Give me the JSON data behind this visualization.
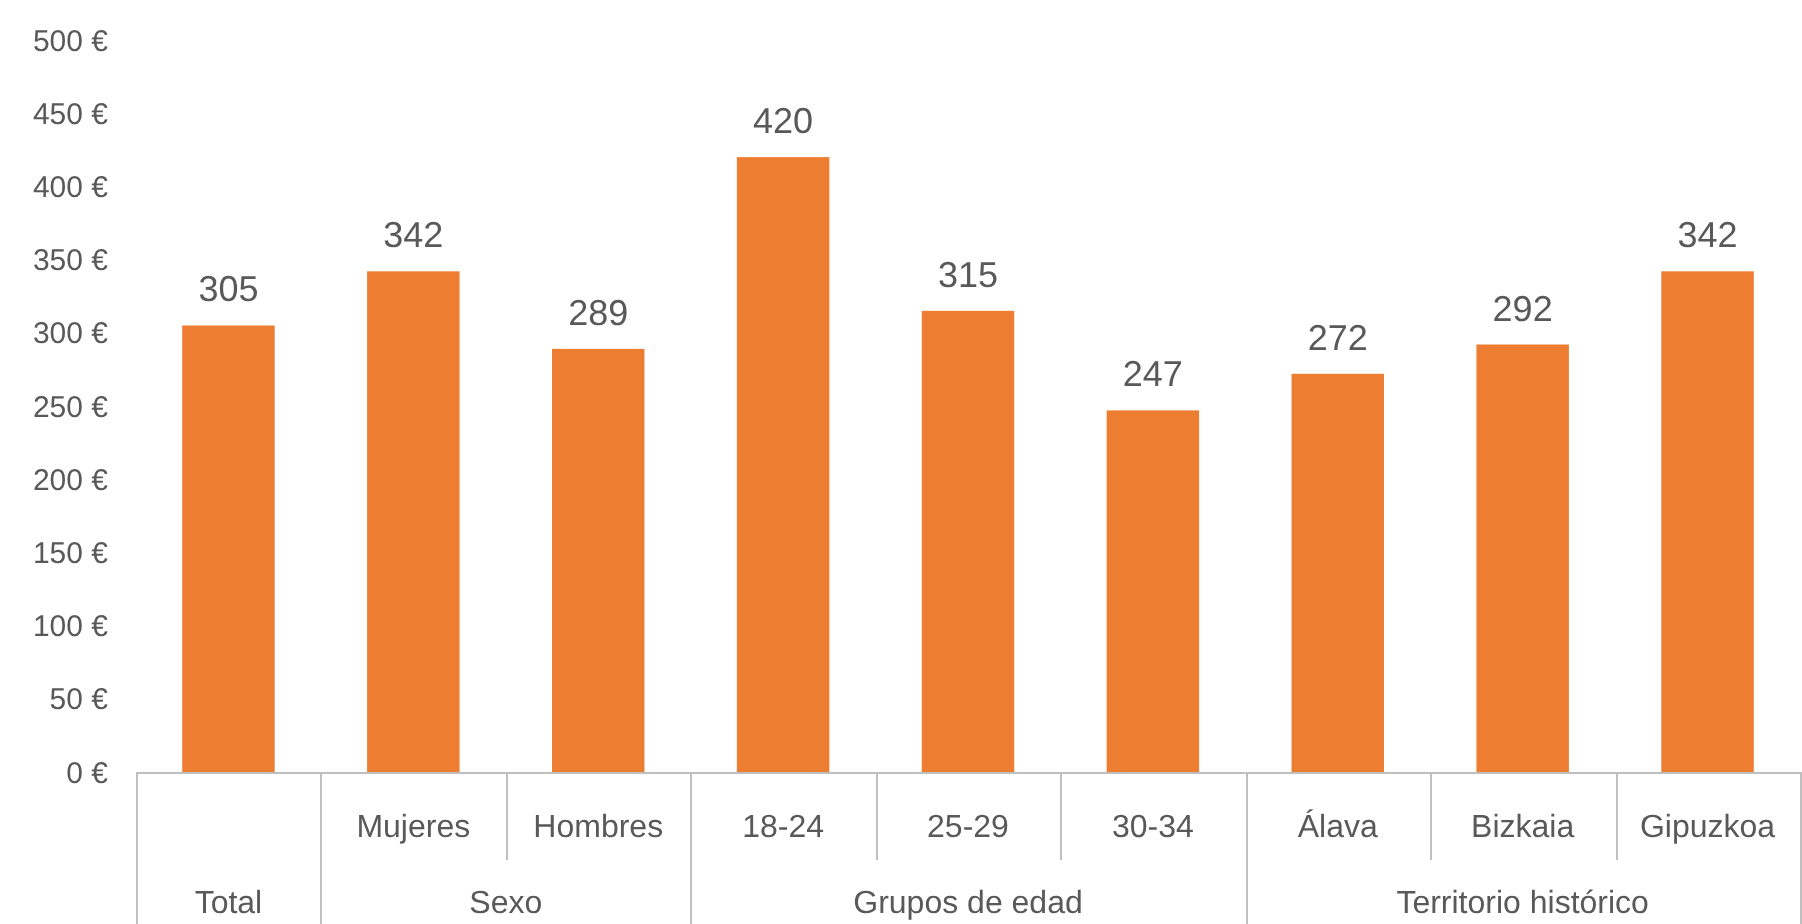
{
  "chart_data": [
    {
      "type": "bar",
      "xlabel": "Total",
      "categories": [
        null
      ],
      "values": [
        305
      ],
      "color": "#ed7d31",
      "ylim": [
        0,
        500
      ],
      "yticks": [
        {
          "value": 0,
          "label": "0 €"
        },
        {
          "value": 50,
          "label": "50 €"
        },
        {
          "value": 100,
          "label": "100 €"
        },
        {
          "value": 150,
          "label": "150 €"
        },
        {
          "value": 200,
          "label": "200 €"
        },
        {
          "value": 250,
          "label": "250 €"
        },
        {
          "value": 300,
          "label": "300 €"
        },
        {
          "value": 350,
          "label": "350 €"
        },
        {
          "value": 400,
          "label": "400 €"
        },
        {
          "value": 450,
          "label": "450 €"
        },
        {
          "value": 500,
          "label": "500 €"
        }
      ],
      "data_labels": true
    },
    {
      "type": "bar",
      "xlabel": "Sexo",
      "categories": [
        "Mujeres",
        "Hombres"
      ],
      "values": [
        342,
        289
      ],
      "color": "#ed7d31",
      "ylim": [
        0,
        500
      ],
      "tick_labels": "x",
      "data_labels": true
    },
    {
      "type": "bar",
      "xlabel": "Grupos de edad",
      "categories": [
        "18-24",
        "25-29",
        "30-34"
      ],
      "values": [
        420,
        315,
        247
      ],
      "color": "#ed7d31",
      "ylim": [
        0,
        500
      ],
      "tick_labels": "x",
      "data_labels": true
    },
    {
      "type": "bar",
      "xlabel": "Territorio histórico",
      "categories": [
        "Álava",
        "Bizkaia",
        "Gipuzkoa"
      ],
      "values": [
        272,
        292,
        342
      ],
      "color": "#ed7d31",
      "ylim": [
        0,
        500
      ],
      "tick_labels": "x",
      "data_labels": true
    }
  ]
}
